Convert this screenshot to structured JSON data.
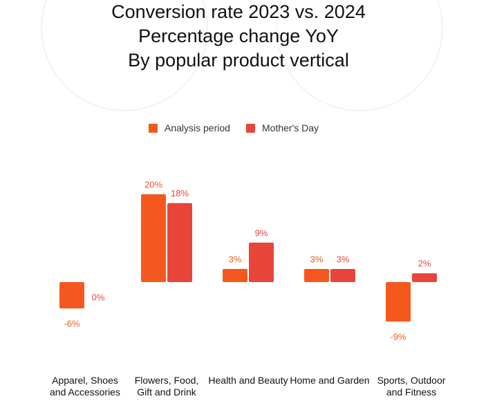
{
  "chart_data": {
    "type": "bar",
    "title": [
      "Conversion rate 2023 vs. 2024",
      "Percentage change YoY",
      "By popular product vertical"
    ],
    "categories": [
      "Apparel, Shoes and Accessories",
      "Flowers, Food, Gift and Drink",
      "Health and Beauty",
      "Home and Garden",
      "Sports, Outdoor and Fitness"
    ],
    "series": [
      {
        "name": "Analysis period",
        "color": "#f4581f",
        "values": [
          -6,
          20,
          3,
          3,
          -9
        ],
        "value_labels": [
          "-6%",
          "20%",
          "3%",
          "3%",
          "-9%"
        ]
      },
      {
        "name": "Mother's Day",
        "color": "#e9443a",
        "values": [
          0,
          18,
          9,
          3,
          2
        ],
        "value_labels": [
          "0%",
          "18%",
          "9%",
          "3%",
          "2%"
        ]
      }
    ],
    "legend": "top"
  }
}
